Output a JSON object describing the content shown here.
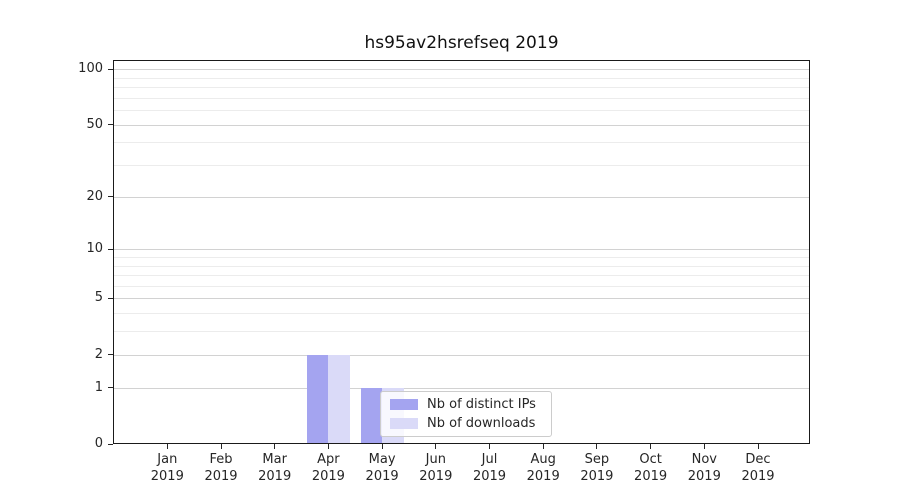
{
  "chart_data": {
    "type": "bar",
    "title": "hs95av2hsrefseq 2019",
    "year": "2019",
    "categories": [
      "Jan",
      "Feb",
      "Mar",
      "Apr",
      "May",
      "Jun",
      "Jul",
      "Aug",
      "Sep",
      "Oct",
      "Nov",
      "Dec"
    ],
    "series": [
      {
        "name": "Nb of distinct IPs",
        "color": "#a4a4f0",
        "values": [
          0,
          0,
          0,
          2,
          1,
          0,
          0,
          0,
          0,
          0,
          0,
          0
        ]
      },
      {
        "name": "Nb of downloads",
        "color": "#dadaf8",
        "values": [
          0,
          0,
          0,
          2,
          1,
          0,
          0,
          0,
          0,
          0,
          0,
          0
        ]
      }
    ],
    "xlabel": "",
    "ylabel": "",
    "yscale": "log1p",
    "ylim": [
      0,
      112
    ],
    "y_major_ticks": [
      0,
      1,
      2,
      5,
      10,
      20,
      50,
      100
    ],
    "y_minor_ticks": [
      3,
      4,
      6,
      7,
      8,
      9,
      30,
      40,
      60,
      70,
      80,
      90
    ],
    "grid": true,
    "legend_position": "lower center"
  },
  "colors": {
    "grid_major": "#d2d2d2",
    "grid_minor": "#ececec",
    "spine": "#1a1a1a",
    "tick_text": "#262626"
  }
}
